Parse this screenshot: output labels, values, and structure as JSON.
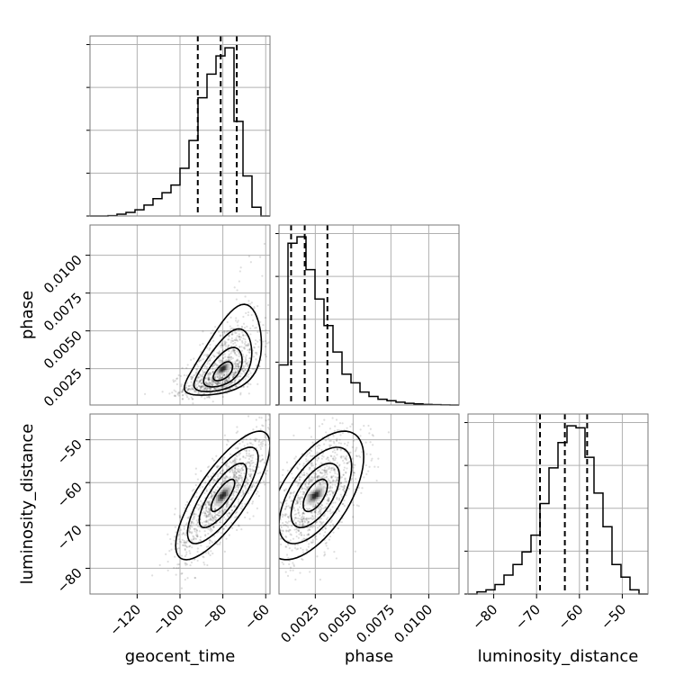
{
  "chart_data": {
    "type": "corner",
    "parameters": [
      "geocent_time",
      "phase",
      "luminosity_distance"
    ],
    "axis_labels": {
      "geocent_time": "geocent_time",
      "phase": "phase",
      "luminosity_distance": "luminosity_distance"
    },
    "ranges": {
      "geocent_time": [
        -142,
        -58
      ],
      "phase": [
        0.0001,
        0.012
      ],
      "luminosity_distance": [
        -86,
        -44
      ]
    },
    "ticks": {
      "geocent_time": [
        -120,
        -100,
        -80,
        -60
      ],
      "phase": [
        0.0025,
        0.005,
        0.0075,
        0.01
      ],
      "luminosity_distance": [
        -80,
        -70,
        -60,
        -50
      ]
    },
    "tick_labels": {
      "geocent_time": [
        "−120",
        "−100",
        "−80",
        "−60"
      ],
      "phase": [
        "0.0025",
        "0.0050",
        "0.0075",
        "0.0100"
      ],
      "luminosity_distance": [
        "−80",
        "−70",
        "−60",
        "−50"
      ]
    },
    "grid": true,
    "marginals": [
      {
        "parameter": "geocent_time",
        "bin_edges": [
          -142,
          -137.8,
          -133.6,
          -129.4,
          -125.2,
          -121,
          -116.8,
          -112.6,
          -108.4,
          -104.2,
          -100,
          -95.8,
          -91.6,
          -87.4,
          -83.2,
          -79,
          -74.8,
          -70.6,
          -66.4,
          -62.2,
          -58
        ],
        "counts": [
          0,
          0,
          2,
          10,
          20,
          34,
          60,
          95,
          128,
          170,
          262,
          415,
          650,
          780,
          880,
          925,
          520,
          220,
          48,
          0
        ],
        "quantiles": [
          -91.7,
          -81.0,
          -73.5
        ]
      },
      {
        "parameter": "phase",
        "bin_edges": [
          0.0001,
          0.000695,
          0.00129,
          0.001885,
          0.00248,
          0.003075,
          0.00367,
          0.004265,
          0.00486,
          0.005455,
          0.00605,
          0.006645,
          0.00724,
          0.007835,
          0.00843,
          0.009025,
          0.00962,
          0.010215,
          0.01081,
          0.011405,
          0.012
        ],
        "counts": [
          280,
          1130,
          1175,
          945,
          740,
          555,
          370,
          215,
          155,
          90,
          60,
          40,
          30,
          20,
          12,
          8,
          4,
          2,
          1,
          0
        ],
        "quantiles": [
          0.0009,
          0.0018,
          0.0033
        ]
      },
      {
        "parameter": "luminosity_distance",
        "bin_edges": [
          -86,
          -83.9,
          -81.8,
          -79.7,
          -77.6,
          -75.5,
          -73.4,
          -71.3,
          -69.2,
          -67.1,
          -65,
          -62.9,
          -60.8,
          -58.7,
          -56.6,
          -54.5,
          -52.4,
          -50.3,
          -48.2,
          -46.1,
          -44
        ],
        "counts": [
          0,
          10,
          20,
          45,
          90,
          140,
          200,
          280,
          430,
          600,
          720,
          800,
          790,
          650,
          480,
          320,
          140,
          80,
          20,
          0
        ],
        "quantiles": [
          -69.2,
          -63.4,
          -58.2
        ]
      }
    ],
    "pairs": [
      {
        "x": "geocent_time",
        "y": "phase",
        "mean": [
          -80,
          0.0025
        ],
        "std": [
          9,
          0.0016
        ],
        "corr": 0.55,
        "skew_y": true
      },
      {
        "x": "geocent_time",
        "y": "luminosity_distance",
        "mean": [
          -80,
          -63
        ],
        "std": [
          11,
          7.5
        ],
        "corr": 0.78,
        "skew_y": false
      },
      {
        "x": "phase",
        "y": "luminosity_distance",
        "mean": [
          0.0025,
          -63
        ],
        "std": [
          0.0016,
          7.5
        ],
        "corr": 0.6,
        "skew_y": false
      }
    ],
    "contour_levels": [
      0.5,
      1.0,
      1.5,
      2.0
    ],
    "colors": {
      "line": "#000000",
      "grid": "#b0b0b0",
      "spine": "#777777",
      "points": "#000000"
    }
  }
}
